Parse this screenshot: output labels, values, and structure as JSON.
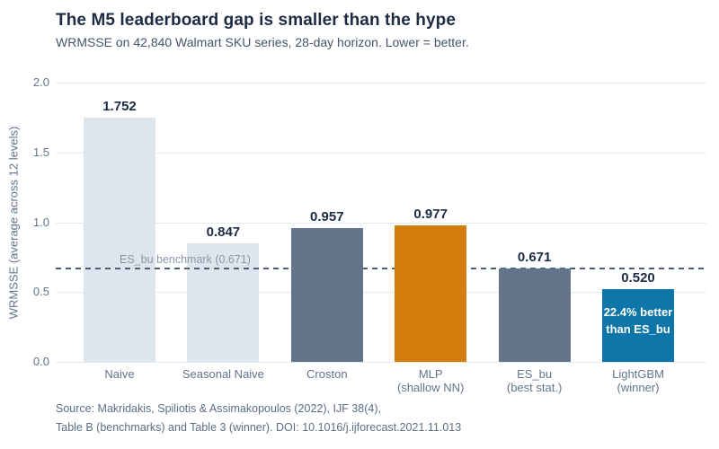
{
  "header": {
    "title": "The M5 leaderboard gap is smaller than the hype",
    "subtitle": "WRMSSE on 42,840 Walmart SKU series, 28-day horizon. Lower = better."
  },
  "chart_data": {
    "type": "bar",
    "title": "The M5 leaderboard gap is smaller than the hype",
    "subtitle": "WRMSSE on 42,840 Walmart SKU series, 28-day horizon. Lower = better.",
    "xlabel": "",
    "ylabel": "WRMSSE (average across 12 levels)",
    "ylim": [
      0,
      2.0
    ],
    "yticks": [
      "0.0",
      "0.5",
      "1.0",
      "1.5",
      "2.0"
    ],
    "grid": "horizontal",
    "legend_position": "none",
    "categories": [
      "Naive",
      "Seasonal Naive",
      "Croston",
      "MLP",
      "ES_bu",
      "LightGBM"
    ],
    "category_sublabels": [
      "",
      "",
      "",
      "(shallow NN)",
      "(best stat.)",
      "(winner)"
    ],
    "values": [
      1.752,
      0.847,
      0.957,
      0.977,
      0.671,
      0.52
    ],
    "value_labels": [
      "1.752",
      "0.847",
      "0.957",
      "0.977",
      "0.671",
      "0.520"
    ],
    "bar_colors": [
      "#dee5ed",
      "#dee5ed",
      "#64748b",
      "#d57d0b",
      "#64748b",
      "#0e76a8"
    ],
    "benchmark_line": {
      "value": 0.671,
      "label": "ES_bu benchmark (0.671)",
      "style": "dashed",
      "color": "#4c5e76"
    },
    "annotation": {
      "target": "LightGBM",
      "lines": [
        "22.4% better",
        "than ES_bu"
      ],
      "color": "#ffffff"
    }
  },
  "footer": {
    "source_line1": "Source: Makridakis, Spiliotis & Assimakopoulos (2022), IJF 38(4),",
    "source_line2": "Table B (benchmarks) and Table 3 (winner). DOI: 10.1016/j.ijforecast.2021.11.013"
  },
  "palette": {
    "background": "#ffffff",
    "title_text": "#1e2b45",
    "subtitle_text": "#475569",
    "axis_text": "#64748b",
    "value_text": "#1e2b45",
    "gridline": "#e5eaf0",
    "light_bar": "#dee5ed",
    "stat_bar": "#64748b",
    "mlp_bar": "#d57d0b",
    "winner_bar": "#0e76a8",
    "benchmark_label_text": "#8a97aa"
  }
}
